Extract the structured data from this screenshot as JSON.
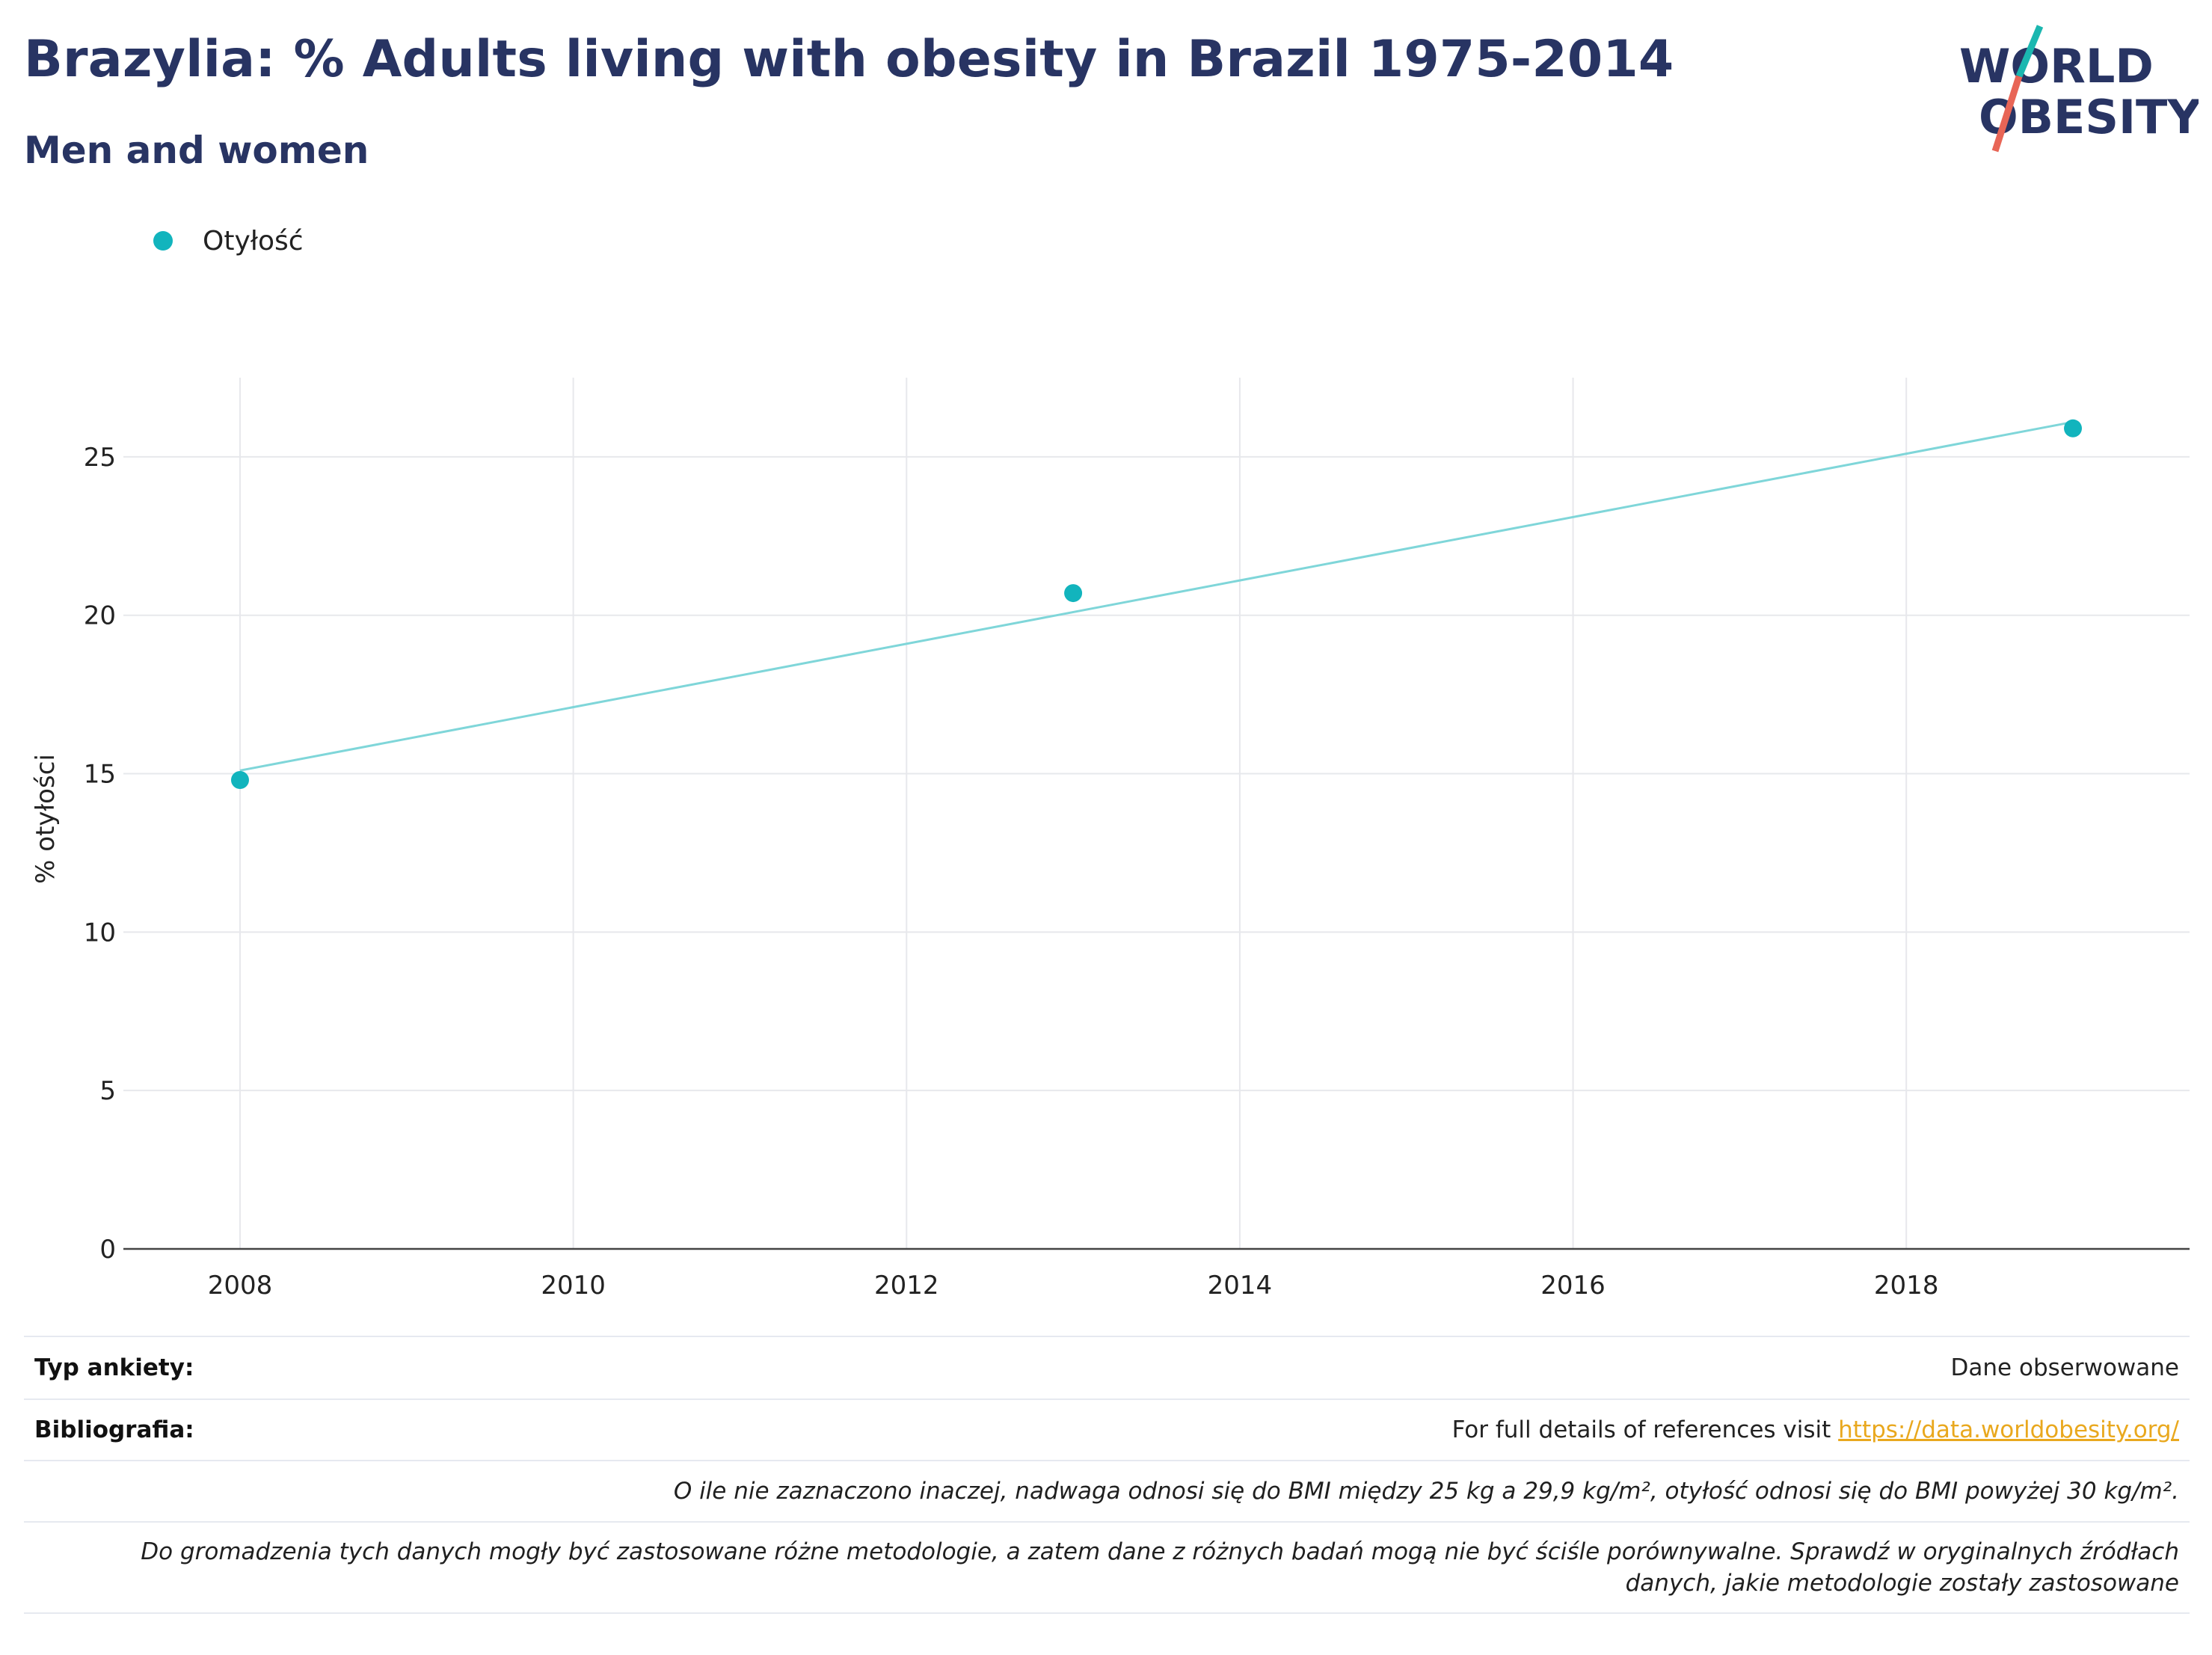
{
  "title": "Brazylia: % Adults living with obesity in Brazil 1975-2014",
  "subtitle": "Men and women",
  "logo": {
    "line1": "WORLD",
    "line2": "OBESITY",
    "color_text": "#283463",
    "color_teal": "#1bb7b0",
    "color_red": "#e86556"
  },
  "legend": {
    "label": "Otyłość",
    "color": "#12b4bd"
  },
  "chart_data": {
    "type": "scatter",
    "ylabel": "% otyłości",
    "xlabel": "",
    "xlim": [
      2007.3,
      2019.7
    ],
    "ylim": [
      0,
      27.5
    ],
    "x_ticks": [
      2008,
      2010,
      2012,
      2014,
      2016,
      2018
    ],
    "y_ticks": [
      0,
      5,
      10,
      15,
      20,
      25
    ],
    "grid": true,
    "series": [
      {
        "name": "Otyłość",
        "type": "scatter",
        "color": "#12b4bd",
        "points": [
          {
            "x": 2008,
            "y": 14.8
          },
          {
            "x": 2013,
            "y": 20.7
          },
          {
            "x": 2019,
            "y": 25.9
          }
        ]
      },
      {
        "name": "",
        "type": "trendline",
        "color": "#7fd6d9",
        "points": [
          {
            "x": 2008,
            "y": 15.1
          },
          {
            "x": 2019,
            "y": 26.1
          }
        ]
      }
    ]
  },
  "footer": {
    "survey_label": "Typ ankiety:",
    "survey_value": "Dane obserwowane",
    "bib_label": "Bibliografia:",
    "bib_text": "For full details of references visit ",
    "bib_link": "https://data.worldobesity.org/",
    "note1": "O ile nie zaznaczono inaczej, nadwaga odnosi się do BMI między 25 kg a 29,9 kg/m², otyłość odnosi się do BMI powyżej 30 kg/m².",
    "note2_line1": "Do gromadzenia tych danych mogły być zastosowane różne metodologie, a zatem dane z różnych badań mogą nie być ściśle porównywalne. Sprawdź w oryginalnych źródłach",
    "note2_line2": "danych, jakie metodologie zostały zastosowane"
  }
}
